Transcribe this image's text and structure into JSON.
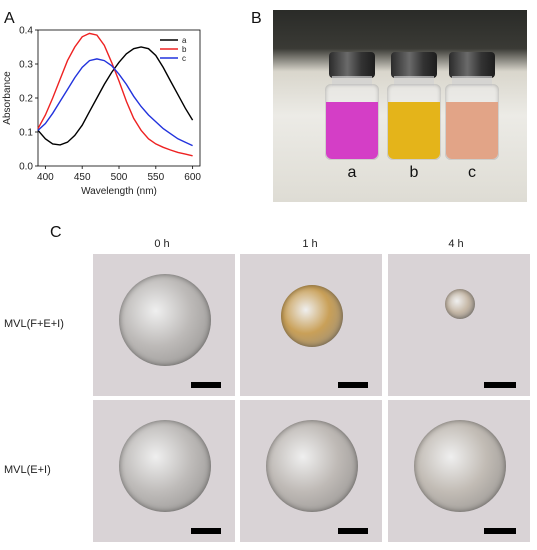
{
  "panels": {
    "a": "A",
    "b": "B",
    "c": "C"
  },
  "chart_data": {
    "type": "line",
    "xlabel": "Wavelength (nm)",
    "ylabel": "Absorbance",
    "xlim": [
      390,
      610
    ],
    "ylim": [
      0.0,
      0.4
    ],
    "xticks": [
      "400",
      "450",
      "500",
      "550",
      "600"
    ],
    "yticks": [
      "0.0",
      "0.1",
      "0.2",
      "0.3",
      "0.4"
    ],
    "legend_position": "top-right",
    "series": [
      {
        "name": "a",
        "color": "#000000",
        "x": [
          390,
          400,
          410,
          420,
          430,
          440,
          450,
          460,
          470,
          480,
          490,
          500,
          510,
          520,
          530,
          540,
          550,
          560,
          570,
          580,
          590,
          600
        ],
        "y": [
          0.105,
          0.08,
          0.065,
          0.062,
          0.07,
          0.09,
          0.12,
          0.16,
          0.2,
          0.24,
          0.275,
          0.305,
          0.33,
          0.345,
          0.35,
          0.345,
          0.325,
          0.29,
          0.25,
          0.21,
          0.17,
          0.135
        ]
      },
      {
        "name": "b",
        "color": "#ee2222",
        "x": [
          390,
          400,
          410,
          420,
          430,
          440,
          450,
          460,
          470,
          480,
          490,
          500,
          510,
          520,
          530,
          540,
          550,
          560,
          570,
          580,
          590,
          600
        ],
        "y": [
          0.11,
          0.15,
          0.2,
          0.255,
          0.31,
          0.35,
          0.38,
          0.39,
          0.385,
          0.355,
          0.305,
          0.25,
          0.19,
          0.14,
          0.105,
          0.08,
          0.065,
          0.055,
          0.047,
          0.04,
          0.035,
          0.03
        ]
      },
      {
        "name": "c",
        "color": "#2233dd",
        "x": [
          390,
          400,
          410,
          420,
          430,
          440,
          450,
          460,
          470,
          480,
          490,
          500,
          510,
          520,
          530,
          540,
          550,
          560,
          570,
          580,
          590,
          600
        ],
        "y": [
          0.105,
          0.125,
          0.155,
          0.19,
          0.225,
          0.26,
          0.29,
          0.31,
          0.315,
          0.31,
          0.295,
          0.27,
          0.24,
          0.205,
          0.175,
          0.15,
          0.13,
          0.11,
          0.095,
          0.08,
          0.07,
          0.06
        ]
      }
    ]
  },
  "photo": {
    "bottles": [
      {
        "label": "a",
        "liquid_color": "#d43ec6"
      },
      {
        "label": "b",
        "liquid_color": "#e4b41a"
      },
      {
        "label": "c",
        "liquid_color": "#e2a487"
      }
    ]
  },
  "micrographs": {
    "columns": [
      "0 h",
      "1 h",
      "4 h"
    ],
    "rows": [
      {
        "label": "MVL(F+E+I)",
        "cells": [
          {
            "blob_color": "#bdbab8",
            "size": "large"
          },
          {
            "blob_color": "#c9a058",
            "size": "medium"
          },
          {
            "blob_color": "#c7b9a8",
            "size": "small"
          }
        ]
      },
      {
        "label": "MVL(E+I)",
        "cells": [
          {
            "blob_color": "#bfbcba",
            "size": "large"
          },
          {
            "blob_color": "#bfbab6",
            "size": "large"
          },
          {
            "blob_color": "#c2bcb5",
            "size": "large"
          }
        ]
      }
    ]
  }
}
